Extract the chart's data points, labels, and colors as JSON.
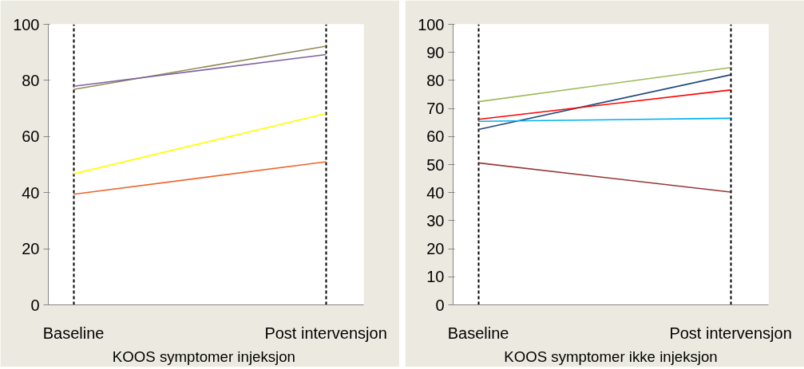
{
  "chart_data": [
    {
      "type": "line",
      "xlabel": "KOOS symptomer  injeksjon",
      "categories": [
        "Baseline",
        "Post intervensjon"
      ],
      "ylim": [
        0,
        100
      ],
      "yticks": [
        0,
        20,
        40,
        60,
        80,
        100
      ],
      "grid": "x",
      "line_style": "solid",
      "series": [
        {
          "color": "#948a54",
          "values": [
            76.8,
            92.2
          ]
        },
        {
          "color": "#8064a2",
          "values": [
            77.9,
            89.2
          ]
        },
        {
          "color": "#ffff00",
          "values": [
            46.7,
            68.2
          ]
        },
        {
          "color": "#f0642a",
          "values": [
            39.4,
            51.0
          ]
        }
      ]
    },
    {
      "type": "line",
      "xlabel": "KOOS symptomer ikke injeksjon",
      "categories": [
        "Baseline",
        "Post intervensjon"
      ],
      "ylim": [
        0,
        100
      ],
      "yticks": [
        0,
        10,
        20,
        30,
        40,
        50,
        60,
        70,
        80,
        90,
        100
      ],
      "grid": "x",
      "line_style": "solid",
      "series": [
        {
          "color": "#9bbb59",
          "values": [
            72.4,
            84.6
          ]
        },
        {
          "color": "#1f497d",
          "values": [
            62.5,
            82.0
          ]
        },
        {
          "color": "#ff0000",
          "values": [
            66.1,
            76.6
          ]
        },
        {
          "color": "#00b0f0",
          "values": [
            65.4,
            66.5
          ]
        },
        {
          "color": "#953735",
          "values": [
            50.6,
            40.2
          ]
        }
      ]
    }
  ]
}
